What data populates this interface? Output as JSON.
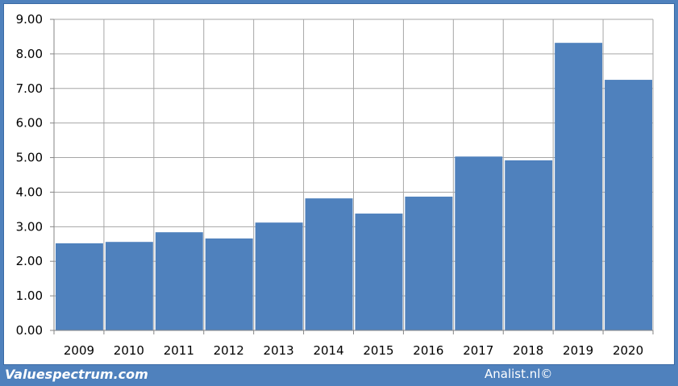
{
  "footer": {
    "brand": "Valuespectrum.com",
    "credit": "Analist.nl©"
  },
  "colors": {
    "bar": "#4f81bd",
    "frame": "#4f81bd",
    "grid": "#a6a6a6",
    "background": "#ffffff"
  },
  "chart_data": {
    "type": "bar",
    "categories": [
      "2009",
      "2010",
      "2011",
      "2012",
      "2013",
      "2014",
      "2015",
      "2016",
      "2017",
      "2018",
      "2019",
      "2020"
    ],
    "values": [
      2.52,
      2.56,
      2.84,
      2.66,
      3.12,
      3.82,
      3.38,
      3.87,
      5.03,
      4.92,
      8.32,
      7.25
    ],
    "y_ticks": [
      "0.00",
      "1.00",
      "2.00",
      "3.00",
      "4.00",
      "5.00",
      "6.00",
      "7.00",
      "8.00",
      "9.00"
    ],
    "ylim": [
      0,
      9
    ],
    "grid": true,
    "legend": "none",
    "title": "",
    "xlabel": "",
    "ylabel": ""
  }
}
